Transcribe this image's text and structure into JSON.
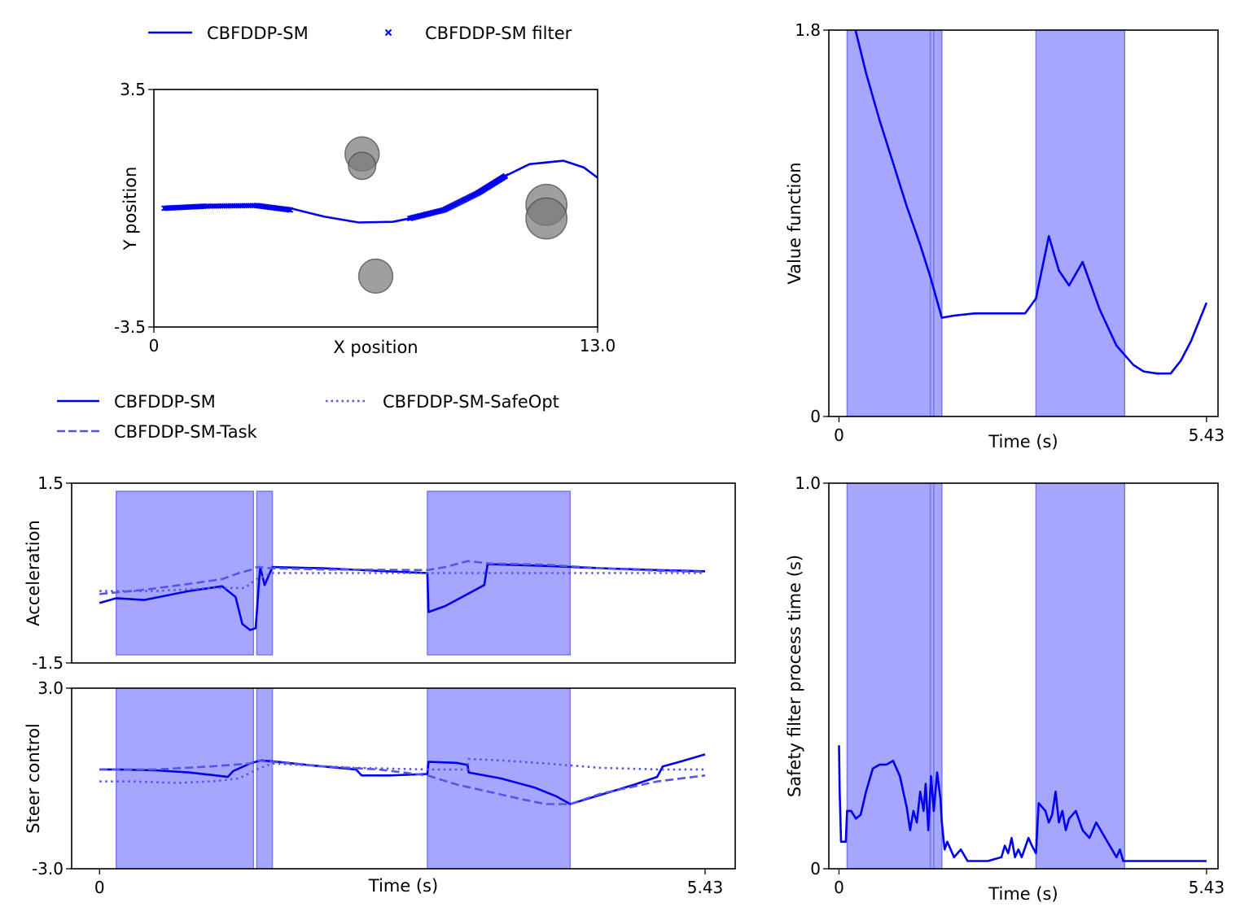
{
  "colors": {
    "main": "#0000ee",
    "secondary": "#5555ee",
    "shade_fill": "#a6a6ff",
    "shade_edge": "#7a7aee",
    "obstacle": "#7a7a7a"
  },
  "legends": {
    "top": [
      {
        "label": "CBFDDP-SM",
        "style": "solid"
      },
      {
        "label": "CBFDDP-SM filter",
        "style": "x-marker"
      }
    ],
    "bottom": [
      {
        "label": "CBFDDP-SM",
        "style": "solid"
      },
      {
        "label": "CBFDDP-SM-Task",
        "style": "dashed"
      },
      {
        "label": "CBFDDP-SM-SafeOpt",
        "style": "dotted"
      }
    ]
  },
  "chart_data": [
    {
      "id": "trajectory",
      "type": "line",
      "xlabel": "X position",
      "ylabel": "Y position",
      "xlim": [
        0,
        13.0
      ],
      "ylim": [
        -3.5,
        3.5
      ],
      "xticks": [
        "0",
        "13.0"
      ],
      "yticks": [
        "3.5",
        "-3.5"
      ],
      "boundaries_y": [
        3.5,
        -3.5
      ],
      "series": [
        {
          "name": "CBFDDP-SM",
          "x": [
            0.3,
            1.5,
            3.0,
            4.0,
            5.0,
            6.0,
            7.0,
            8.0,
            9.0,
            10.0,
            11.0,
            12.0,
            12.6,
            13.0
          ],
          "y": [
            0.0,
            0.06,
            0.08,
            0.0,
            -0.25,
            -0.42,
            -0.4,
            -0.2,
            0.2,
            0.8,
            1.3,
            1.4,
            1.2,
            0.9
          ]
        },
        {
          "name": "CBFDDP-SM filter",
          "x": [
            0.3,
            1.5,
            3.0,
            4.0
          ],
          "y": [
            0.0,
            0.06,
            0.08,
            -0.05
          ]
        },
        {
          "name": "CBFDDP-SM filter",
          "x": [
            7.5,
            8.5,
            9.5,
            10.3
          ],
          "y": [
            -0.3,
            -0.05,
            0.45,
            0.95
          ]
        }
      ],
      "obstacles": [
        {
          "x": 6.1,
          "y": 1.6,
          "r": 0.5
        },
        {
          "x": 6.1,
          "y": 1.25,
          "r": 0.4
        },
        {
          "x": 6.5,
          "y": -2.0,
          "r": 0.5
        },
        {
          "x": 11.5,
          "y": 0.1,
          "r": 0.6
        },
        {
          "x": 11.5,
          "y": -0.3,
          "r": 0.6
        }
      ]
    },
    {
      "id": "value_function",
      "type": "line",
      "xlabel": "Time (s)",
      "ylabel": "Value function",
      "xlim": [
        -0.15,
        5.6
      ],
      "ylim": [
        0,
        1.8
      ],
      "xticks": [
        "0",
        "5.43"
      ],
      "yticks": [
        "1.8",
        "0"
      ],
      "shaded_intervals": [
        [
          0.12,
          1.35
        ],
        [
          1.35,
          1.4
        ],
        [
          1.4,
          1.52
        ],
        [
          2.91,
          4.22
        ]
      ],
      "series": [
        {
          "name": "CBFDDP-SM",
          "x": [
            0.22,
            0.4,
            0.6,
            0.8,
            1.0,
            1.2,
            1.35,
            1.52,
            1.7,
            2.0,
            2.5,
            2.75,
            2.91,
            3.1,
            3.25,
            3.4,
            3.6,
            3.85,
            4.1,
            4.35,
            4.5,
            4.7,
            4.9,
            5.05,
            5.2,
            5.43
          ],
          "y": [
            1.83,
            1.6,
            1.38,
            1.18,
            0.98,
            0.8,
            0.65,
            0.46,
            0.47,
            0.48,
            0.48,
            0.48,
            0.55,
            0.84,
            0.68,
            0.61,
            0.72,
            0.5,
            0.33,
            0.24,
            0.21,
            0.2,
            0.2,
            0.26,
            0.35,
            0.53
          ]
        }
      ]
    },
    {
      "id": "acceleration",
      "type": "line",
      "ylabel": "Acceleration",
      "xlim": [
        -0.25,
        5.7
      ],
      "ylim": [
        -1.5,
        1.5
      ],
      "yticks": [
        "1.5",
        "-1.5"
      ],
      "shaded_intervals": [
        [
          0.15,
          1.38
        ],
        [
          1.41,
          1.55
        ],
        [
          2.94,
          4.22
        ]
      ],
      "series": [
        {
          "name": "CBFDDP-SM",
          "x": [
            0.0,
            0.15,
            0.4,
            0.8,
            1.1,
            1.22,
            1.28,
            1.35,
            1.4,
            1.44,
            1.48,
            1.55,
            2.0,
            2.94,
            2.95,
            3.1,
            3.3,
            3.45,
            3.48,
            4.0,
            4.5,
            5.0,
            5.43
          ],
          "y": [
            -0.5,
            -0.42,
            -0.45,
            -0.3,
            -0.22,
            -0.4,
            -0.85,
            -0.95,
            -0.92,
            0.1,
            -0.2,
            0.1,
            0.08,
            0.0,
            -0.65,
            -0.55,
            -0.35,
            -0.2,
            0.15,
            0.12,
            0.08,
            0.05,
            0.03
          ]
        },
        {
          "name": "CBFDDP-SM-Task",
          "x": [
            0.0,
            0.4,
            0.8,
            1.1,
            1.25,
            1.35,
            1.41,
            1.55,
            2.0,
            2.94,
            3.1,
            3.3,
            3.5,
            4.0,
            4.5,
            5.0,
            5.43
          ],
          "y": [
            -0.35,
            -0.28,
            -0.18,
            -0.1,
            0.0,
            0.05,
            0.1,
            0.08,
            0.06,
            0.05,
            0.1,
            0.2,
            0.16,
            0.14,
            0.08,
            0.04,
            0.02
          ]
        },
        {
          "name": "CBFDDP-SM-SafeOpt",
          "x": [
            0.0,
            0.5,
            1.0,
            1.3,
            1.41,
            1.55,
            2.0,
            3.0,
            4.0,
            5.0,
            5.43
          ],
          "y": [
            -0.3,
            -0.3,
            -0.25,
            -0.25,
            -0.1,
            0.0,
            0.0,
            0.0,
            0.0,
            0.0,
            0.0
          ]
        }
      ]
    },
    {
      "id": "steer",
      "type": "line",
      "xlabel": "Time (s)",
      "ylabel": "Steer control",
      "xlim": [
        -0.25,
        5.7
      ],
      "ylim": [
        -3.0,
        3.0
      ],
      "xticks": [
        "0",
        "5.43"
      ],
      "yticks": [
        "3.0",
        "-3.0"
      ],
      "shaded_intervals": [
        [
          0.15,
          1.38
        ],
        [
          1.41,
          1.55
        ],
        [
          2.94,
          4.22
        ]
      ],
      "series": [
        {
          "name": "CBFDDP-SM",
          "x": [
            0.0,
            0.15,
            0.5,
            0.8,
            1.0,
            1.15,
            1.2,
            1.35,
            1.45,
            1.6,
            2.0,
            2.3,
            2.35,
            2.6,
            2.94,
            2.95,
            3.2,
            3.3,
            3.31,
            3.6,
            3.9,
            4.1,
            4.22,
            4.4,
            4.8,
            5.0,
            5.05,
            5.2,
            5.43
          ],
          "y": [
            0.3,
            0.3,
            0.27,
            0.2,
            0.12,
            0.05,
            0.25,
            0.5,
            0.6,
            0.55,
            0.4,
            0.3,
            0.1,
            0.1,
            0.15,
            0.55,
            0.52,
            0.45,
            0.2,
            0.0,
            -0.3,
            -0.6,
            -0.85,
            -0.65,
            -0.2,
            0.05,
            0.4,
            0.55,
            0.8
          ]
        },
        {
          "name": "CBFDDP-SM-Task",
          "x": [
            0.0,
            0.5,
            1.0,
            1.35,
            1.41,
            1.55,
            2.0,
            2.5,
            2.94,
            3.2,
            3.5,
            3.8,
            4.0,
            4.22,
            4.5,
            5.0,
            5.43
          ],
          "y": [
            0.3,
            0.3,
            0.4,
            0.5,
            0.6,
            0.55,
            0.4,
            0.3,
            0.1,
            -0.2,
            -0.45,
            -0.7,
            -0.85,
            -0.85,
            -0.5,
            -0.1,
            0.1
          ]
        },
        {
          "name": "CBFDDP-SM-SafeOpt",
          "x": [
            0.0,
            0.3,
            0.7,
            1.0,
            1.25,
            1.41,
            1.55,
            1.8,
            2.3,
            2.94,
            3.3,
            3.31,
            3.6,
            4.0,
            4.5,
            5.0,
            5.43
          ],
          "y": [
            -0.1,
            -0.1,
            -0.15,
            -0.1,
            0.0,
            0.3,
            0.5,
            0.45,
            0.35,
            0.3,
            0.3,
            0.65,
            0.6,
            0.5,
            0.35,
            0.3,
            0.3
          ]
        }
      ]
    },
    {
      "id": "process_time",
      "type": "line",
      "xlabel": "Time (s)",
      "ylabel": "Safety filter process time (s)",
      "xlim": [
        -0.15,
        5.6
      ],
      "ylim": [
        0,
        1.0
      ],
      "xticks": [
        "0",
        "5.43"
      ],
      "yticks": [
        "1.0",
        "0"
      ],
      "shaded_intervals": [
        [
          0.12,
          1.35
        ],
        [
          1.35,
          1.4
        ],
        [
          1.4,
          1.52
        ],
        [
          2.91,
          4.22
        ]
      ],
      "series": [
        {
          "name": "CBFDDP-SM",
          "x": [
            0.0,
            0.01,
            0.03,
            0.1,
            0.12,
            0.18,
            0.25,
            0.32,
            0.4,
            0.5,
            0.6,
            0.7,
            0.8,
            0.85,
            0.9,
            0.95,
            1.0,
            1.05,
            1.1,
            1.15,
            1.2,
            1.25,
            1.28,
            1.32,
            1.36,
            1.4,
            1.45,
            1.5,
            1.52,
            1.56,
            1.6,
            1.7,
            1.8,
            1.9,
            2.0,
            2.2,
            2.4,
            2.45,
            2.5,
            2.55,
            2.6,
            2.65,
            2.7,
            2.8,
            2.85,
            2.91,
            2.95,
            3.0,
            3.05,
            3.1,
            3.15,
            3.2,
            3.25,
            3.3,
            3.35,
            3.4,
            3.5,
            3.6,
            3.7,
            3.8,
            4.0,
            4.1,
            4.15,
            4.2,
            4.3,
            4.5,
            4.8,
            5.1,
            5.43
          ],
          "y": [
            0.32,
            0.2,
            0.07,
            0.07,
            0.15,
            0.15,
            0.13,
            0.14,
            0.2,
            0.26,
            0.27,
            0.27,
            0.28,
            0.26,
            0.24,
            0.2,
            0.16,
            0.1,
            0.15,
            0.12,
            0.2,
            0.15,
            0.22,
            0.1,
            0.24,
            0.15,
            0.25,
            0.18,
            0.12,
            0.05,
            0.07,
            0.03,
            0.05,
            0.02,
            0.02,
            0.02,
            0.03,
            0.06,
            0.04,
            0.08,
            0.03,
            0.05,
            0.03,
            0.08,
            0.06,
            0.04,
            0.17,
            0.16,
            0.15,
            0.12,
            0.14,
            0.2,
            0.12,
            0.15,
            0.1,
            0.13,
            0.15,
            0.1,
            0.08,
            0.12,
            0.06,
            0.03,
            0.05,
            0.02,
            0.02,
            0.02,
            0.02,
            0.02,
            0.02
          ]
        }
      ]
    }
  ]
}
